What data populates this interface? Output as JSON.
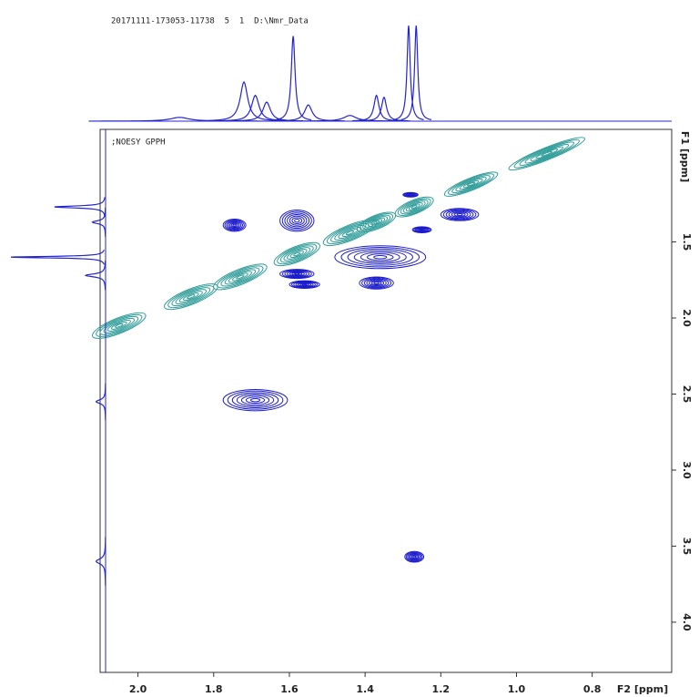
{
  "chart_data": {
    "type": "contour",
    "title": "20171111-173053-11738  5  1  D:\\Nmr_Data",
    "annotation": ";NOESY GPPH",
    "xlabel": "F2 [ppm]",
    "ylabel": "F1 [ppm]",
    "xlim": [
      2.1,
      0.59
    ],
    "ylim": [
      0.76,
      4.33
    ],
    "xticks": [
      {
        "value": 2,
        "label": "2.0"
      },
      1.8,
      1.6,
      1.4,
      1.2,
      {
        "value": 1,
        "label": "1.0"
      },
      0.8
    ],
    "yticks": [
      1.5,
      {
        "value": 2,
        "label": "2.0"
      },
      2.5,
      {
        "value": 3,
        "label": "3.0"
      },
      3.5,
      {
        "value": 4,
        "label": "4.0"
      }
    ],
    "positive_color": "#2e9c98",
    "negative_color": "#1c1ccc",
    "projection_color": "#2424d0",
    "contour_levels": 7,
    "peaks": [
      {
        "f2": 2.05,
        "f1": 2.05,
        "rx": 0.07,
        "ry": 0.1,
        "sign": 1
      },
      {
        "f2": 1.86,
        "f1": 1.86,
        "rx": 0.07,
        "ry": 0.1,
        "sign": 1
      },
      {
        "f2": 1.73,
        "f1": 1.73,
        "rx": 0.07,
        "ry": 0.1,
        "sign": 1
      },
      {
        "f2": 1.58,
        "f1": 1.58,
        "rx": 0.06,
        "ry": 0.1,
        "sign": 1
      },
      {
        "f2": 1.44,
        "f1": 1.44,
        "rx": 0.07,
        "ry": 0.1,
        "sign": 1
      },
      {
        "f2": 1.37,
        "f1": 1.37,
        "rx": 0.05,
        "ry": 0.09,
        "sign": 1
      },
      {
        "f2": 1.27,
        "f1": 1.27,
        "rx": 0.05,
        "ry": 0.09,
        "sign": 1
      },
      {
        "f2": 1.12,
        "f1": 1.12,
        "rx": 0.07,
        "ry": 0.08,
        "sign": 1
      },
      {
        "f2": 0.92,
        "f1": 0.92,
        "rx": 0.1,
        "ry": 0.08,
        "sign": 1
      },
      {
        "f2": 1.745,
        "f1": 1.39,
        "rx": 0.03,
        "ry": 0.04,
        "sign": -1
      },
      {
        "f2": 1.58,
        "f1": 1.36,
        "rx": 0.045,
        "ry": 0.07,
        "sign": -1
      },
      {
        "f2": 1.58,
        "f1": 1.71,
        "rx": 0.045,
        "ry": 0.03,
        "sign": -1
      },
      {
        "f2": 1.56,
        "f1": 1.78,
        "rx": 0.04,
        "ry": 0.025,
        "sign": -1
      },
      {
        "f2": 1.36,
        "f1": 1.6,
        "rx": 0.12,
        "ry": 0.075,
        "sign": -1
      },
      {
        "f2": 1.37,
        "f1": 1.77,
        "rx": 0.045,
        "ry": 0.04,
        "sign": -1
      },
      {
        "f2": 1.28,
        "f1": 1.19,
        "rx": 0.02,
        "ry": 0.015,
        "sign": -1
      },
      {
        "f2": 1.25,
        "f1": 1.42,
        "rx": 0.025,
        "ry": 0.02,
        "sign": -1
      },
      {
        "f2": 1.15,
        "f1": 1.32,
        "rx": 0.05,
        "ry": 0.04,
        "sign": -1
      },
      {
        "f2": 1.69,
        "f1": 2.54,
        "rx": 0.085,
        "ry": 0.07,
        "sign": -1
      },
      {
        "f2": 1.27,
        "f1": 3.57,
        "rx": 0.025,
        "ry": 0.035,
        "sign": -1
      }
    ],
    "f2_projection": [
      {
        "ppm": 1.89,
        "intensity": 4,
        "width": 0.03
      },
      {
        "ppm": 1.72,
        "intensity": 41,
        "width": 0.012
      },
      {
        "ppm": 1.69,
        "intensity": 27,
        "width": 0.012
      },
      {
        "ppm": 1.66,
        "intensity": 20,
        "width": 0.012
      },
      {
        "ppm": 1.59,
        "intensity": 89,
        "width": 0.006
      },
      {
        "ppm": 1.55,
        "intensity": 17,
        "width": 0.012
      },
      {
        "ppm": 1.44,
        "intensity": 6,
        "width": 0.02
      },
      {
        "ppm": 1.37,
        "intensity": 27,
        "width": 0.008
      },
      {
        "ppm": 1.35,
        "intensity": 25,
        "width": 0.008
      },
      {
        "ppm": 1.285,
        "intensity": 100,
        "width": 0.005
      },
      {
        "ppm": 1.265,
        "intensity": 100,
        "width": 0.005
      }
    ],
    "f1_projection": [
      {
        "ppm": 1.27,
        "intensity": 54,
        "width": 0.008
      },
      {
        "ppm": 1.37,
        "intensity": 14,
        "width": 0.012
      },
      {
        "ppm": 1.6,
        "intensity": 100,
        "width": 0.006
      },
      {
        "ppm": 1.72,
        "intensity": 21,
        "width": 0.012
      },
      {
        "ppm": 2.55,
        "intensity": 10,
        "width": 0.015
      },
      {
        "ppm": 3.6,
        "intensity": 10,
        "width": 0.02
      }
    ]
  }
}
